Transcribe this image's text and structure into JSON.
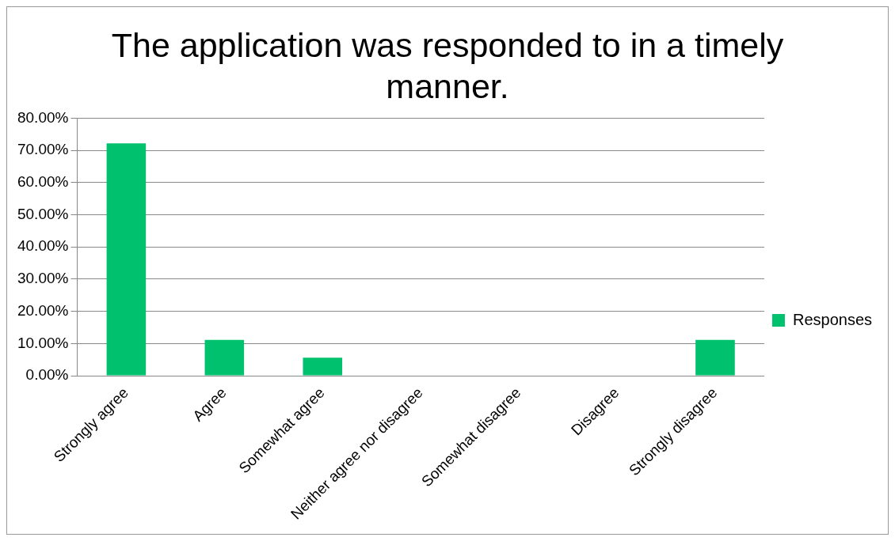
{
  "chart_data": {
    "type": "bar",
    "title": "The application was responded to in a timely manner.",
    "categories": [
      "Strongly agree",
      "Agree",
      "Somewhat agree",
      "Neither agree nor disagree",
      "Somewhat disagree",
      "Disagree",
      "Strongly disagree"
    ],
    "series": [
      {
        "name": "Responses",
        "color": "#00c16e",
        "values": [
          72.2,
          11.1,
          5.6,
          0,
          0,
          0,
          11.1
        ]
      }
    ],
    "ylim": [
      0,
      80
    ],
    "yticks": [
      {
        "value": 0,
        "label": "0.00%"
      },
      {
        "value": 10,
        "label": "10.00%"
      },
      {
        "value": 20,
        "label": "20.00%"
      },
      {
        "value": 30,
        "label": "30.00%"
      },
      {
        "value": 40,
        "label": "40.00%"
      },
      {
        "value": 50,
        "label": "50.00%"
      },
      {
        "value": 60,
        "label": "60.00%"
      },
      {
        "value": 70,
        "label": "70.00%"
      },
      {
        "value": 80,
        "label": "80.00%"
      }
    ],
    "grid": "y",
    "legend": "right"
  }
}
